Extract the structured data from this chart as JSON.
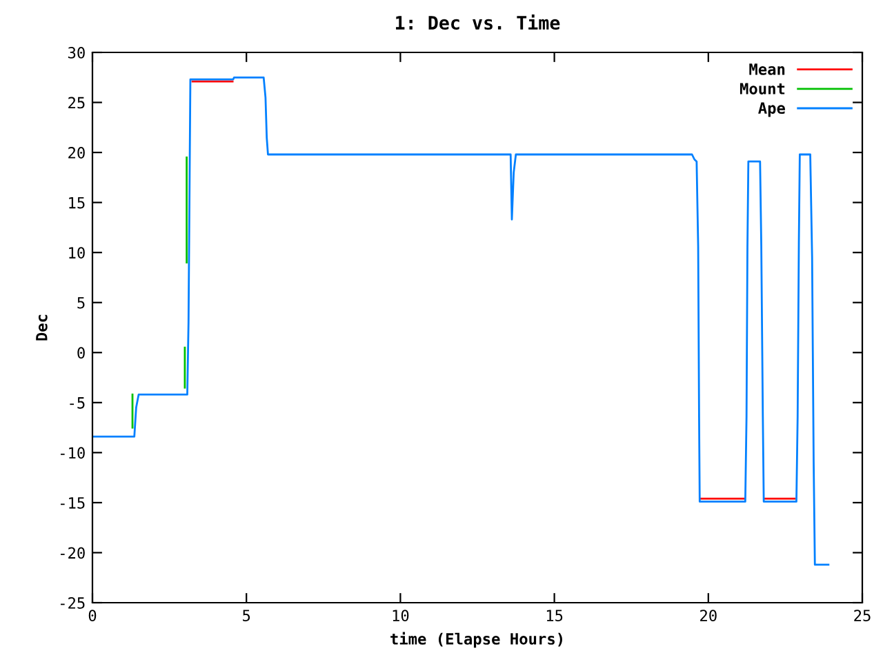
{
  "chart_data": {
    "type": "line",
    "title": "1: Dec vs. Time",
    "xlabel": "time (Elapse Hours)",
    "ylabel": "Dec",
    "series": [
      {
        "name": "Mean",
        "color": "#ff0000",
        "x": [
          3.25,
          4.55,
          null,
          19.75,
          21.15,
          null,
          21.85,
          22.8
        ],
        "values": [
          27.1,
          27.1,
          null,
          -14.6,
          -14.6,
          null,
          -14.6,
          -14.6
        ]
      },
      {
        "name": "Mount",
        "color": "#00c000",
        "x": [
          1.3,
          1.3,
          null,
          3.0,
          3.0,
          null,
          3.06,
          3.06
        ],
        "values": [
          -7.5,
          -4.2,
          null,
          -3.5,
          0.5,
          null,
          9,
          19.5
        ]
      },
      {
        "name": "Ape",
        "color": "#0080ff",
        "x": [
          0,
          1.36,
          1.42,
          1.5,
          3.08,
          3.12,
          3.18,
          4.57,
          4.6,
          5.56,
          5.62,
          5.66,
          5.7,
          13.58,
          13.62,
          13.68,
          13.75,
          19.47,
          19.55,
          19.62,
          19.67,
          19.7,
          19.72,
          21.2,
          21.24,
          21.27,
          21.3,
          21.68,
          21.72,
          21.77,
          21.8,
          22.86,
          22.9,
          22.94,
          22.97,
          23.31,
          23.37,
          23.42,
          23.46,
          23.9
        ],
        "values": [
          -8.4,
          -8.4,
          -5.5,
          -4.2,
          -4.2,
          3,
          27.3,
          27.3,
          27.5,
          27.5,
          25.5,
          21.5,
          19.8,
          19.8,
          13.3,
          18,
          19.8,
          19.8,
          19.3,
          19.1,
          10.6,
          -6.4,
          -14.9,
          -14.9,
          -6.4,
          10.6,
          19.1,
          19.1,
          10.6,
          -6.4,
          -14.9,
          -14.9,
          -6.4,
          11,
          19.8,
          19.8,
          9.5,
          -10.9,
          -21.2,
          -21.2
        ]
      }
    ],
    "xlim": [
      0,
      25
    ],
    "xticks": [
      0,
      5,
      10,
      15,
      20,
      25
    ],
    "ylim": [
      -25,
      30
    ],
    "yticks": [
      -25,
      -20,
      -15,
      -10,
      -5,
      0,
      5,
      10,
      15,
      20,
      25,
      30
    ],
    "grid": false,
    "legend": "top right",
    "marker": "none",
    "line_style": "solid"
  }
}
